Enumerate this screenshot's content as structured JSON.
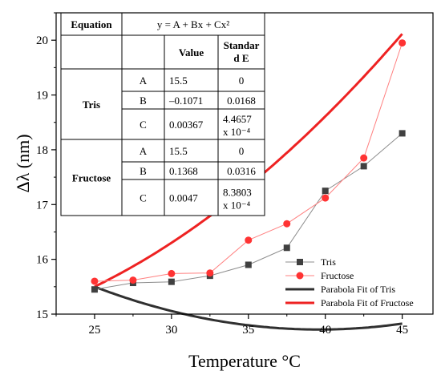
{
  "chart_data": {
    "type": "scatter",
    "xlabel": "Temperature °C",
    "ylabel": "Δλ (nm)",
    "xlim": [
      22.5,
      47
    ],
    "ylim": [
      15,
      20.5
    ],
    "x_ticks": [
      25,
      30,
      35,
      40,
      45
    ],
    "y_ticks": [
      15,
      16,
      17,
      18,
      19,
      20
    ],
    "series": [
      {
        "name": "Tris",
        "marker": "square",
        "color": "#404040",
        "line_color": "#8c8c8c",
        "x": [
          25,
          27.5,
          30,
          32.5,
          35,
          37.5,
          40,
          42.5,
          45
        ],
        "y": [
          15.45,
          15.57,
          15.59,
          15.7,
          15.9,
          16.21,
          17.25,
          17.7,
          18.3
        ]
      },
      {
        "name": "Fructose",
        "marker": "circle",
        "color": "#ff3333",
        "line_color": "#ff8080",
        "x": [
          25,
          27.5,
          30,
          32.5,
          35,
          37.5,
          40,
          42.5,
          45
        ],
        "y": [
          15.6,
          15.62,
          15.74,
          15.75,
          16.35,
          16.65,
          17.12,
          17.85,
          19.95
        ]
      }
    ],
    "fits": [
      {
        "name": "Parabola Fit of Tris",
        "color": "#303030",
        "A": 15.5,
        "B": -0.1071,
        "C": 0.00367
      },
      {
        "name": "Parabola Fit of Fructose",
        "color": "#ee2222",
        "A": 15.5,
        "B": 0.1368,
        "C": 0.0047
      }
    ],
    "legend_position": "bottom-right",
    "table": {
      "equation_label": "Equation",
      "equation": "y = A + Bx + Cx²",
      "col_value": "Value",
      "col_se_line1": "Standar",
      "col_se_line2": "d E",
      "groups": [
        {
          "name": "Tris",
          "rows": [
            {
              "param": "A",
              "value": "15.5",
              "se1": "0",
              "se2": ""
            },
            {
              "param": "B",
              "value": "–0.1071",
              "se1": "0.0168",
              "se2": ""
            },
            {
              "param": "C",
              "value": "0.00367",
              "se1": "4.4657",
              "se2": "x 10⁻⁴"
            }
          ]
        },
        {
          "name": "Fructose",
          "rows": [
            {
              "param": "A",
              "value": "15.5",
              "se1": "0",
              "se2": ""
            },
            {
              "param": "B",
              "value": "0.1368",
              "se1": "0.0316",
              "se2": ""
            },
            {
              "param": "C",
              "value": "0.0047",
              "se1": "8.3803",
              "se2": "x 10⁻⁴"
            }
          ]
        }
      ]
    }
  }
}
